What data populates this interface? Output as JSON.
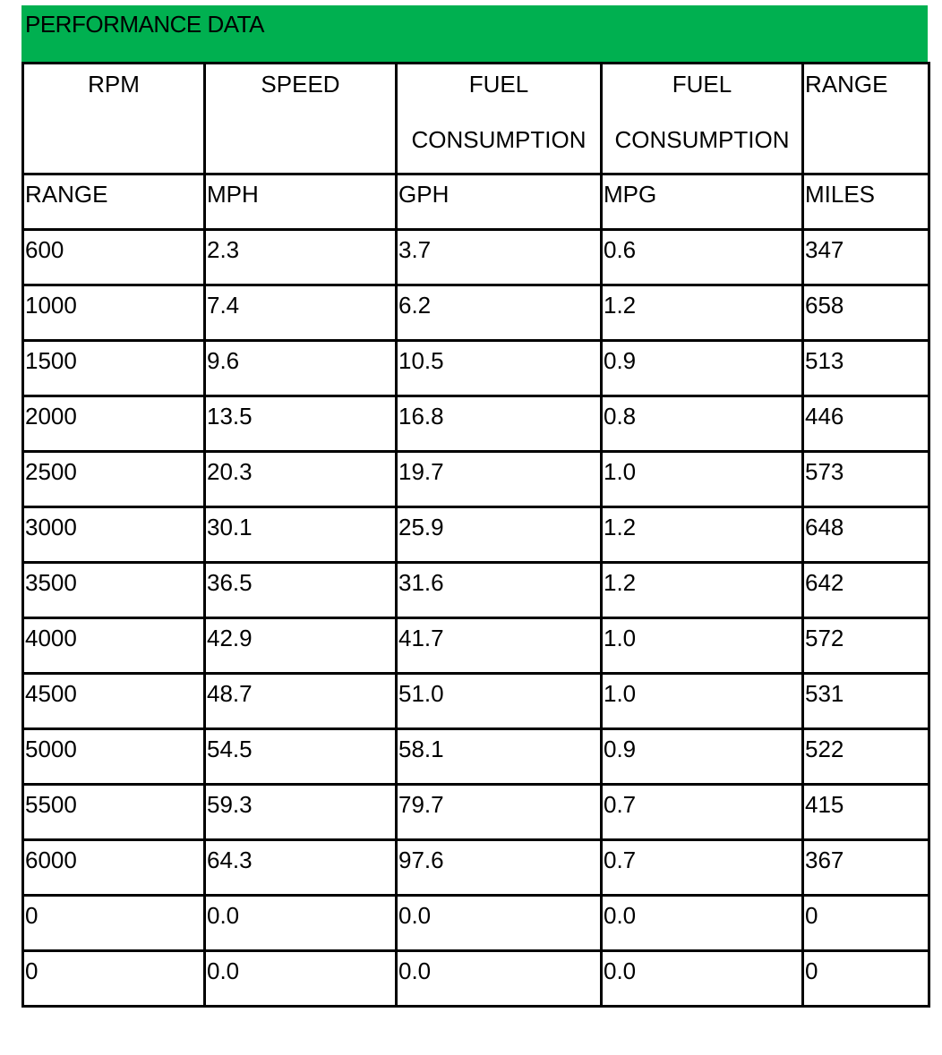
{
  "banner": {
    "title": "PERFORMANCE DATA",
    "color": "#00b050"
  },
  "table": {
    "headers": [
      {
        "line1": "RPM",
        "line2": ""
      },
      {
        "line1": "SPEED",
        "line2": ""
      },
      {
        "line1": "FUEL",
        "line2": "CONSUMPTION"
      },
      {
        "line1": "FUEL",
        "line2": "CONSUMPTION"
      },
      {
        "line1": "RANGE",
        "line2": ""
      }
    ],
    "units": [
      "RANGE",
      "MPH",
      "GPH",
      "MPG",
      "MILES"
    ],
    "rows": [
      [
        "600",
        "2.3",
        "3.7",
        "0.6",
        "347"
      ],
      [
        "1000",
        "7.4",
        "6.2",
        "1.2",
        "658"
      ],
      [
        "1500",
        "9.6",
        "10.5",
        "0.9",
        "513"
      ],
      [
        "2000",
        "13.5",
        "16.8",
        "0.8",
        "446"
      ],
      [
        "2500",
        "20.3",
        "19.7",
        "1.0",
        "573"
      ],
      [
        "3000",
        "30.1",
        "25.9",
        "1.2",
        "648"
      ],
      [
        "3500",
        "36.5",
        "31.6",
        "1.2",
        "642"
      ],
      [
        "4000",
        "42.9",
        "41.7",
        "1.0",
        "572"
      ],
      [
        "4500",
        "48.7",
        "51.0",
        "1.0",
        "531"
      ],
      [
        "5000",
        "54.5",
        "58.1",
        "0.9",
        "522"
      ],
      [
        "5500",
        "59.3",
        "79.7",
        "0.7",
        "415"
      ],
      [
        "6000",
        "64.3",
        "97.6",
        "0.7",
        "367"
      ],
      [
        "0",
        "0.0",
        "0.0",
        "0.0",
        "0"
      ],
      [
        "0",
        "0.0",
        "0.0",
        "0.0",
        "0"
      ]
    ]
  }
}
